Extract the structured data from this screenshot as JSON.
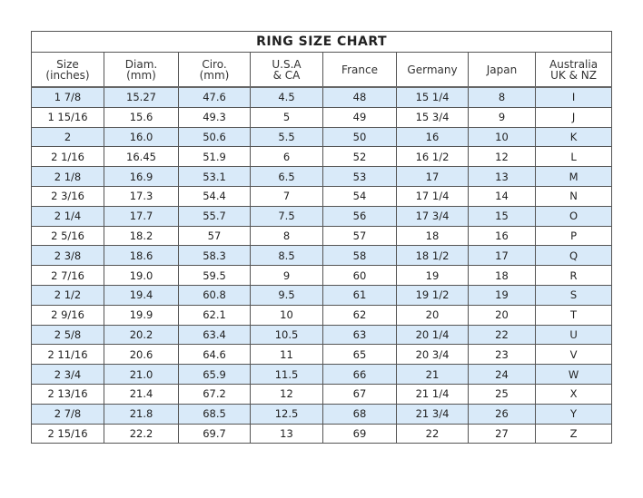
{
  "title": "RING SIZE CHART",
  "columns": [
    [
      "Size",
      "(inches)"
    ],
    [
      "Diam.",
      "(mm)"
    ],
    [
      "Ciro.",
      "(mm)"
    ],
    [
      "U.S.A",
      "& CA"
    ],
    [
      "France",
      ""
    ],
    [
      "Germany",
      ""
    ],
    [
      "Japan",
      ""
    ],
    [
      "Australia",
      "UK & NZ"
    ]
  ],
  "row_colors": {
    "highlight": "#d9eaf9",
    "plain": "#ffffff"
  },
  "rows": [
    [
      "1 7/8",
      "15.27",
      "47.6",
      "4.5",
      "48",
      "15 1/4",
      "8",
      "I"
    ],
    [
      "1 15/16",
      "15.6",
      "49.3",
      "5",
      "49",
      "15 3/4",
      "9",
      "J"
    ],
    [
      "2",
      "16.0",
      "50.6",
      "5.5",
      "50",
      "16",
      "10",
      "K"
    ],
    [
      "2 1/16",
      "16.45",
      "51.9",
      "6",
      "52",
      "16 1/2",
      "12",
      "L"
    ],
    [
      "2 1/8",
      "16.9",
      "53.1",
      "6.5",
      "53",
      "17",
      "13",
      "M"
    ],
    [
      "2 3/16",
      "17.3",
      "54.4",
      "7",
      "54",
      "17 1/4",
      "14",
      "N"
    ],
    [
      "2 1/4",
      "17.7",
      "55.7",
      "7.5",
      "56",
      "17 3/4",
      "15",
      "O"
    ],
    [
      "2 5/16",
      "18.2",
      "57",
      "8",
      "57",
      "18",
      "16",
      "P"
    ],
    [
      "2 3/8",
      "18.6",
      "58.3",
      "8.5",
      "58",
      "18 1/2",
      "17",
      "Q"
    ],
    [
      "2 7/16",
      "19.0",
      "59.5",
      "9",
      "60",
      "19",
      "18",
      "R"
    ],
    [
      "2 1/2",
      "19.4",
      "60.8",
      "9.5",
      "61",
      "19 1/2",
      "19",
      "S"
    ],
    [
      "2 9/16",
      "19.9",
      "62.1",
      "10",
      "62",
      "20",
      "20",
      "T"
    ],
    [
      "2 5/8",
      "20.2",
      "63.4",
      "10.5",
      "63",
      "20 1/4",
      "22",
      "U"
    ],
    [
      "2 11/16",
      "20.6",
      "64.6",
      "11",
      "65",
      "20 3/4",
      "23",
      "V"
    ],
    [
      "2 3/4",
      "21.0",
      "65.9",
      "11.5",
      "66",
      "21",
      "24",
      "W"
    ],
    [
      "2 13/16",
      "21.4",
      "67.2",
      "12",
      "67",
      "21 1/4",
      "25",
      "X"
    ],
    [
      "2 7/8",
      "21.8",
      "68.5",
      "12.5",
      "68",
      "21 3/4",
      "26",
      "Y"
    ],
    [
      "2 15/16",
      "22.2",
      "69.7",
      "13",
      "69",
      "22",
      "27",
      "Z"
    ]
  ]
}
